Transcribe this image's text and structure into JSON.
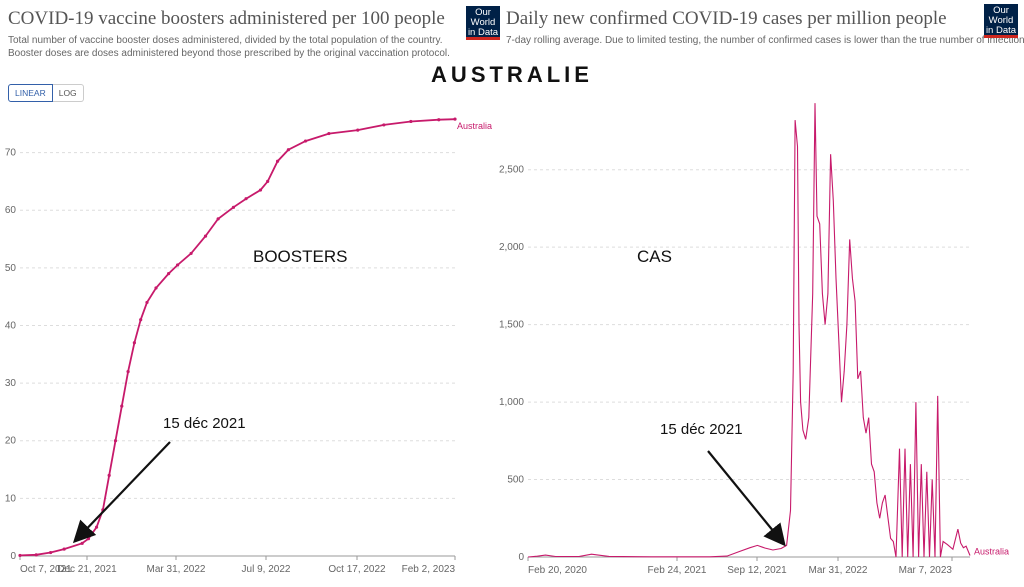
{
  "page_title": "AUSTRALIE",
  "left": {
    "title": "COVID-19 vaccine boosters administered per 100 people",
    "subtitle": "Total number of vaccine booster doses administered, divided by the total population of the country. Booster doses are doses administered beyond those prescribed by the original vaccination protocol.",
    "logo_line1": "Our World",
    "logo_line2": "in Data",
    "scale_linear": "LINEAR",
    "scale_log": "LOG",
    "overlay_label": "BOOSTERS",
    "annotation": "15 déc 2021"
  },
  "right": {
    "title": "Daily new confirmed COVID-19 cases per million people",
    "subtitle": "7-day rolling average. Due to limited testing, the number of confirmed cases is lower than the true number of infections.",
    "logo_line1": "Our World",
    "logo_line2": "in Data",
    "overlay_label": "CAS",
    "annotation": "15 déc 2021"
  },
  "colors": {
    "series": "#c71a6b",
    "grid": "#dddddd",
    "logo_bg": "#002147",
    "logo_red": "#ce261e"
  },
  "chart_data": [
    {
      "type": "line",
      "title": "COVID-19 vaccine boosters administered per 100 people",
      "x_tick_labels": [
        "Oct 7, 2021",
        "Dec 21, 2021",
        "Mar 31, 2022",
        "Jul 9, 2022",
        "Oct 17, 2022",
        "Feb 2, 2023"
      ],
      "y_ticks": [
        0,
        10,
        20,
        30,
        40,
        50,
        60,
        70
      ],
      "ylim": [
        0,
        76
      ],
      "xlim": [
        "2021-10-07",
        "2023-02-02"
      ],
      "grid": true,
      "series": [
        {
          "name": "Australia",
          "points": [
            [
              "2021-10-07",
              0.1
            ],
            [
              "2021-10-25",
              0.2
            ],
            [
              "2021-11-10",
              0.6
            ],
            [
              "2021-11-25",
              1.2
            ],
            [
              "2021-12-15",
              2.2
            ],
            [
              "2021-12-22",
              3.0
            ],
            [
              "2021-12-31",
              5.0
            ],
            [
              "2022-01-07",
              8.0
            ],
            [
              "2022-01-14",
              14.0
            ],
            [
              "2022-01-21",
              20.0
            ],
            [
              "2022-01-28",
              26.0
            ],
            [
              "2022-02-04",
              32.0
            ],
            [
              "2022-02-11",
              37.0
            ],
            [
              "2022-02-18",
              41.0
            ],
            [
              "2022-02-25",
              44.0
            ],
            [
              "2022-03-07",
              46.5
            ],
            [
              "2022-03-21",
              49.0
            ],
            [
              "2022-03-31",
              50.5
            ],
            [
              "2022-04-15",
              52.5
            ],
            [
              "2022-05-01",
              55.5
            ],
            [
              "2022-05-15",
              58.5
            ],
            [
              "2022-06-01",
              60.5
            ],
            [
              "2022-06-15",
              62.0
            ],
            [
              "2022-07-01",
              63.5
            ],
            [
              "2022-07-09",
              65.0
            ],
            [
              "2022-07-20",
              68.5
            ],
            [
              "2022-08-01",
              70.5
            ],
            [
              "2022-08-20",
              72.0
            ],
            [
              "2022-09-15",
              73.3
            ],
            [
              "2022-10-17",
              73.9
            ],
            [
              "2022-11-15",
              74.8
            ],
            [
              "2022-12-15",
              75.4
            ],
            [
              "2023-01-15",
              75.7
            ],
            [
              "2023-02-02",
              75.8
            ]
          ]
        }
      ]
    },
    {
      "type": "line",
      "title": "Daily new confirmed COVID-19 cases per million people",
      "x_tick_labels": [
        "Feb 20, 2020",
        "Feb 24, 2021",
        "Sep 12, 2021",
        "Mar 31, 2022",
        "Mar 7, 2023"
      ],
      "y_ticks": [
        0,
        500,
        1000,
        1500,
        2000,
        2500
      ],
      "ylim": [
        0,
        2950
      ],
      "xlim": [
        "2020-02-20",
        "2023-03-31"
      ],
      "grid": true,
      "series": [
        {
          "name": "Australia",
          "points": [
            [
              "2020-02-20",
              0
            ],
            [
              "2020-03-15",
              5
            ],
            [
              "2020-04-05",
              12
            ],
            [
              "2020-05-01",
              3
            ],
            [
              "2020-07-01",
              4
            ],
            [
              "2020-08-01",
              18
            ],
            [
              "2020-09-15",
              4
            ],
            [
              "2021-01-01",
              1
            ],
            [
              "2021-02-24",
              1
            ],
            [
              "2021-06-01",
              1
            ],
            [
              "2021-07-15",
              6
            ],
            [
              "2021-08-15",
              35
            ],
            [
              "2021-09-12",
              60
            ],
            [
              "2021-10-01",
              75
            ],
            [
              "2021-10-20",
              58
            ],
            [
              "2021-11-10",
              45
            ],
            [
              "2021-12-01",
              55
            ],
            [
              "2021-12-15",
              75
            ],
            [
              "2021-12-25",
              300
            ],
            [
              "2022-01-01",
              1200
            ],
            [
              "2022-01-06",
              2820
            ],
            [
              "2022-01-12",
              2650
            ],
            [
              "2022-01-16",
              1500
            ],
            [
              "2022-01-20",
              1000
            ],
            [
              "2022-01-26",
              820
            ],
            [
              "2022-02-02",
              760
            ],
            [
              "2022-02-10",
              900
            ],
            [
              "2022-02-20",
              1700
            ],
            [
              "2022-02-26",
              2930
            ],
            [
              "2022-03-03",
              2200
            ],
            [
              "2022-03-10",
              2150
            ],
            [
              "2022-03-17",
              1700
            ],
            [
              "2022-03-24",
              1500
            ],
            [
              "2022-03-31",
              1700
            ],
            [
              "2022-04-07",
              2600
            ],
            [
              "2022-04-14",
              2300
            ],
            [
              "2022-04-21",
              1800
            ],
            [
              "2022-04-28",
              1400
            ],
            [
              "2022-05-05",
              1000
            ],
            [
              "2022-05-12",
              1200
            ],
            [
              "2022-05-19",
              1500
            ],
            [
              "2022-05-26",
              2050
            ],
            [
              "2022-06-02",
              1800
            ],
            [
              "2022-06-09",
              1650
            ],
            [
              "2022-06-16",
              1150
            ],
            [
              "2022-06-23",
              1200
            ],
            [
              "2022-06-30",
              900
            ],
            [
              "2022-07-07",
              800
            ],
            [
              "2022-07-14",
              900
            ],
            [
              "2022-07-21",
              600
            ],
            [
              "2022-07-28",
              550
            ],
            [
              "2022-08-04",
              350
            ],
            [
              "2022-08-11",
              250
            ],
            [
              "2022-08-18",
              350
            ],
            [
              "2022-08-25",
              400
            ],
            [
              "2022-09-01",
              260
            ],
            [
              "2022-09-08",
              120
            ],
            [
              "2022-09-15",
              100
            ],
            [
              "2022-09-22",
              0
            ],
            [
              "2022-10-01",
              700
            ],
            [
              "2022-10-08",
              0
            ],
            [
              "2022-10-15",
              700
            ],
            [
              "2022-10-22",
              0
            ],
            [
              "2022-10-29",
              600
            ],
            [
              "2022-11-05",
              0
            ],
            [
              "2022-11-12",
              1000
            ],
            [
              "2022-11-19",
              0
            ],
            [
              "2022-11-26",
              600
            ],
            [
              "2022-12-03",
              0
            ],
            [
              "2022-12-10",
              550
            ],
            [
              "2022-12-17",
              0
            ],
            [
              "2022-12-24",
              500
            ],
            [
              "2022-12-31",
              0
            ],
            [
              "2023-01-07",
              1040
            ],
            [
              "2023-01-14",
              0
            ],
            [
              "2023-01-21",
              100
            ],
            [
              "2023-02-01",
              80
            ],
            [
              "2023-02-15",
              50
            ],
            [
              "2023-02-28",
              180
            ],
            [
              "2023-03-07",
              90
            ],
            [
              "2023-03-14",
              60
            ],
            [
              "2023-03-21",
              70
            ],
            [
              "2023-03-31",
              10
            ]
          ]
        }
      ]
    }
  ]
}
